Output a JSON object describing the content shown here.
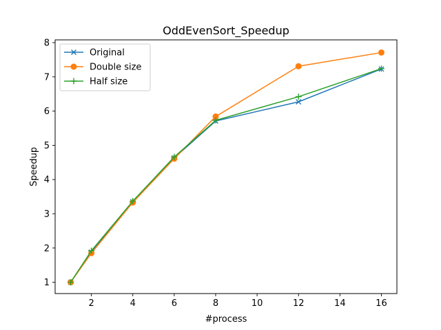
{
  "chart_data": {
    "type": "line",
    "title": "OddEvenSort_Speedup",
    "xlabel": "#process",
    "ylabel": "Speedup",
    "xlim": [
      0.25,
      16.75
    ],
    "ylim": [
      0.67,
      8.08
    ],
    "xticks": [
      2,
      4,
      6,
      8,
      10,
      12,
      14,
      16
    ],
    "yticks": [
      1,
      2,
      3,
      4,
      5,
      6,
      7,
      8
    ],
    "grid": false,
    "legend_position": "upper left",
    "series": [
      {
        "name": "Original",
        "color": "#1f77b4",
        "marker": "x",
        "x": [
          1,
          2,
          4,
          6,
          8,
          12,
          16
        ],
        "y": [
          1.0,
          1.88,
          3.35,
          4.63,
          5.71,
          6.27,
          7.23
        ]
      },
      {
        "name": "Double size",
        "color": "#ff7f0e",
        "marker": "o",
        "x": [
          1,
          2,
          4,
          6,
          8,
          12,
          16
        ],
        "y": [
          1.0,
          1.85,
          3.33,
          4.61,
          5.84,
          7.31,
          7.71
        ]
      },
      {
        "name": "Half size",
        "color": "#2ca02c",
        "marker": "+",
        "x": [
          1,
          2,
          4,
          6,
          8,
          12,
          16
        ],
        "y": [
          1.0,
          1.92,
          3.37,
          4.66,
          5.73,
          6.42,
          7.24
        ]
      }
    ]
  }
}
